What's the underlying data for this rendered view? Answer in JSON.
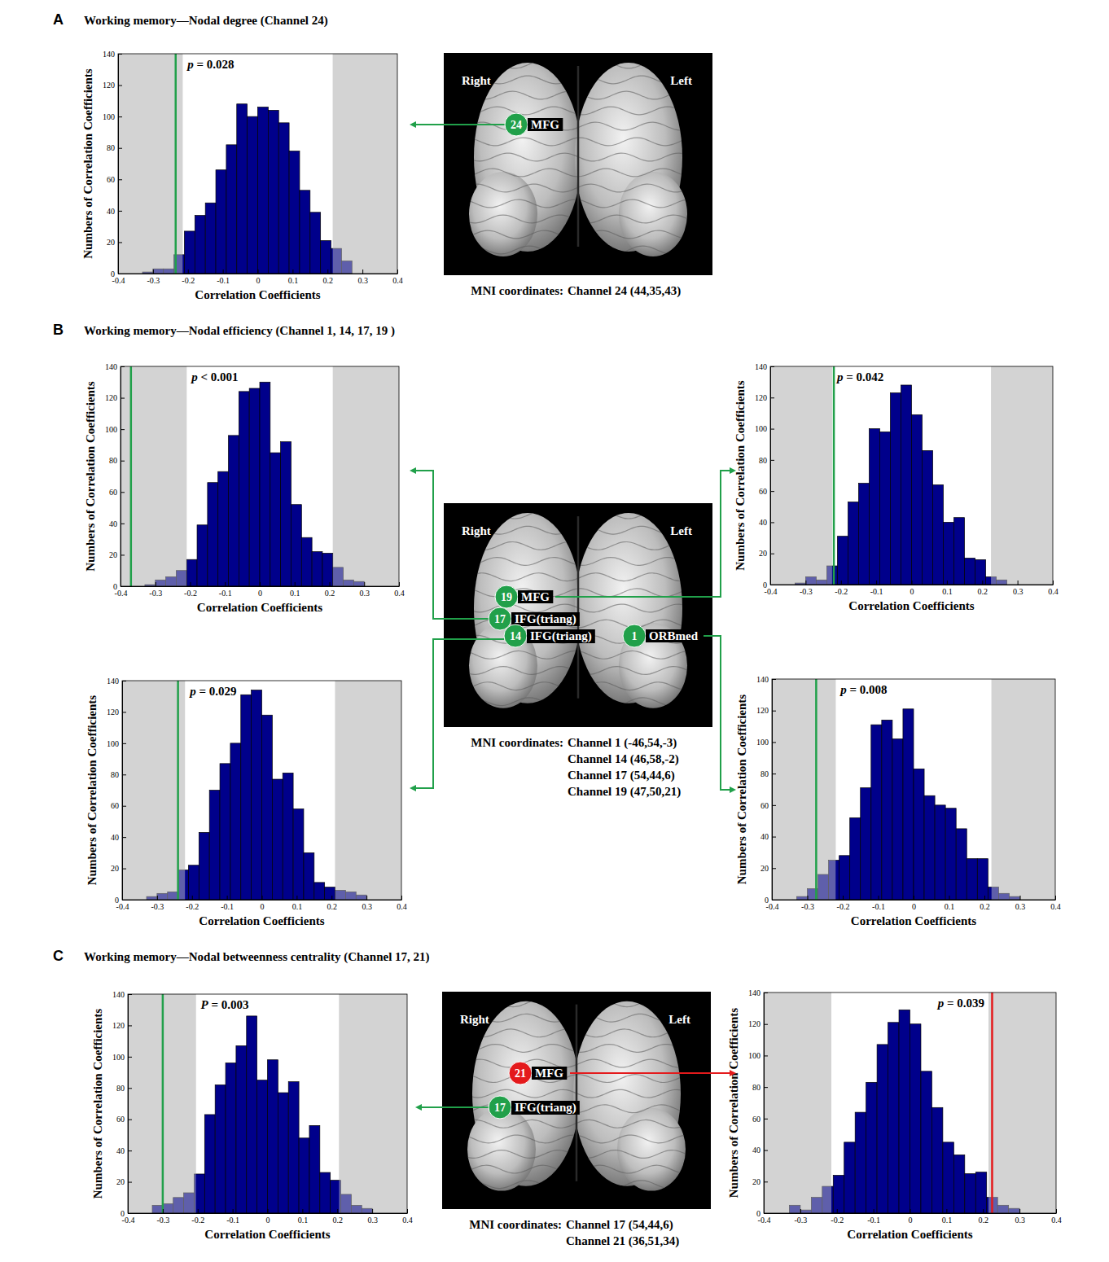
{
  "chart_data": [
    {
      "type": "histogram",
      "annotation": "p = 0.028",
      "xlabel": "Correlation Coefficients",
      "ylabel": "Numbers of Correlation Coefficients",
      "bins": [
        -0.33,
        -0.3,
        -0.27,
        -0.24,
        -0.21,
        -0.18,
        -0.15,
        -0.12,
        -0.09,
        -0.06,
        -0.03,
        0,
        0.03,
        0.06,
        0.09,
        0.12,
        0.15,
        0.18,
        0.21,
        0.24,
        0.27,
        0.3,
        0.33
      ],
      "counts": [
        1,
        3,
        3,
        12,
        27,
        37,
        45,
        66,
        82,
        108,
        100,
        106,
        104,
        96,
        78,
        53,
        39,
        21,
        16,
        8,
        0,
        0
      ],
      "color": "#00008b",
      "xlim": [
        -0.4,
        0.4
      ],
      "xticks": [
        -0.4,
        -0.3,
        -0.2,
        -0.1,
        0,
        0.1,
        0.2,
        0.3,
        0.4
      ],
      "ylim": [
        0,
        140
      ],
      "yticks": [
        0,
        20,
        40,
        60,
        80,
        100,
        120,
        140
      ],
      "critical_values": [
        -0.215,
        0.215
      ],
      "observed": {
        "value": -0.235,
        "color": "#21a04a"
      }
    },
    {
      "type": "histogram",
      "annotation": "p < 0.001",
      "xlabel": "Correlation Coefficients",
      "ylabel": "Numbers of Correlation Coefficients",
      "bins": [
        -0.33,
        -0.3,
        -0.27,
        -0.24,
        -0.21,
        -0.18,
        -0.15,
        -0.12,
        -0.09,
        -0.06,
        -0.03,
        0,
        0.03,
        0.06,
        0.09,
        0.12,
        0.15,
        0.18,
        0.21,
        0.24,
        0.27,
        0.3,
        0.33
      ],
      "counts": [
        1,
        4,
        6,
        10,
        17,
        39,
        66,
        73,
        96,
        124,
        126,
        130,
        85,
        92,
        52,
        31,
        22,
        21,
        12,
        4,
        3,
        0
      ],
      "color": "#00008b",
      "xlim": [
        -0.4,
        0.4
      ],
      "xticks": [
        -0.4,
        -0.3,
        -0.2,
        -0.1,
        0,
        0.1,
        0.2,
        0.3,
        0.4
      ],
      "ylim": [
        0,
        140
      ],
      "yticks": [
        0,
        20,
        40,
        60,
        80,
        100,
        120,
        140
      ],
      "critical_values": [
        -0.21,
        0.21
      ],
      "observed": {
        "value": -0.37,
        "color": "#21a04a"
      }
    },
    {
      "type": "histogram",
      "annotation": "p = 0.042",
      "xlabel": "Correlation Coefficients",
      "ylabel": "Numbers of Correlation Coefficients",
      "bins": [
        -0.33,
        -0.3,
        -0.27,
        -0.24,
        -0.21,
        -0.18,
        -0.15,
        -0.12,
        -0.09,
        -0.06,
        -0.03,
        0,
        0.03,
        0.06,
        0.09,
        0.12,
        0.15,
        0.18,
        0.21,
        0.24,
        0.27,
        0.3,
        0.33
      ],
      "counts": [
        1,
        5,
        3,
        12,
        31,
        53,
        65,
        100,
        98,
        123,
        128,
        109,
        86,
        64,
        40,
        43,
        17,
        16,
        5,
        3,
        0,
        0
      ],
      "color": "#00008b",
      "xlim": [
        -0.4,
        0.4
      ],
      "xticks": [
        -0.4,
        -0.3,
        -0.2,
        -0.1,
        0,
        0.1,
        0.2,
        0.3,
        0.4
      ],
      "ylim": [
        0,
        140
      ],
      "yticks": [
        0,
        20,
        40,
        60,
        80,
        100,
        120,
        140
      ],
      "critical_values": [
        -0.225,
        0.225
      ],
      "observed": {
        "value": -0.22,
        "color": "#21a04a"
      }
    },
    {
      "type": "histogram",
      "annotation": "p = 0.029",
      "xlabel": "Correlation Coefficients",
      "ylabel": "Numbers of Correlation Coefficients",
      "bins": [
        -0.33,
        -0.3,
        -0.27,
        -0.24,
        -0.21,
        -0.18,
        -0.15,
        -0.12,
        -0.09,
        -0.06,
        -0.03,
        0,
        0.03,
        0.06,
        0.09,
        0.12,
        0.15,
        0.18,
        0.21,
        0.24,
        0.27,
        0.3,
        0.33
      ],
      "counts": [
        2,
        4,
        5,
        19,
        22,
        43,
        70,
        87,
        100,
        131,
        134,
        118,
        77,
        81,
        58,
        30,
        11,
        8,
        6,
        5,
        3,
        0
      ],
      "color": "#00008b",
      "xlim": [
        -0.4,
        0.4
      ],
      "xticks": [
        -0.4,
        -0.3,
        -0.2,
        -0.1,
        0,
        0.1,
        0.2,
        0.3,
        0.4
      ],
      "ylim": [
        0,
        140
      ],
      "yticks": [
        0,
        20,
        40,
        60,
        80,
        100,
        120,
        140
      ],
      "critical_values": [
        -0.22,
        0.21
      ],
      "observed": {
        "value": -0.24,
        "color": "#21a04a"
      }
    },
    {
      "type": "histogram",
      "annotation": "p = 0.008",
      "xlabel": "Correlation Coefficients",
      "ylabel": "Numbers of Correlation Coefficients",
      "bins": [
        -0.33,
        -0.3,
        -0.27,
        -0.24,
        -0.21,
        -0.18,
        -0.15,
        -0.12,
        -0.09,
        -0.06,
        -0.03,
        0,
        0.03,
        0.06,
        0.09,
        0.12,
        0.15,
        0.18,
        0.21,
        0.24,
        0.27,
        0.3,
        0.33
      ],
      "counts": [
        2,
        7,
        16,
        25,
        28,
        52,
        71,
        111,
        114,
        102,
        121,
        83,
        66,
        60,
        58,
        45,
        26,
        26,
        8,
        4,
        2,
        0
      ],
      "color": "#00008b",
      "xlim": [
        -0.4,
        0.4
      ],
      "xticks": [
        -0.4,
        -0.3,
        -0.2,
        -0.1,
        0,
        0.1,
        0.2,
        0.3,
        0.4
      ],
      "ylim": [
        0,
        140
      ],
      "yticks": [
        0,
        20,
        40,
        60,
        80,
        100,
        120,
        140
      ],
      "critical_values": [
        -0.22,
        0.22
      ],
      "observed": {
        "value": -0.275,
        "color": "#21a04a"
      }
    },
    {
      "type": "histogram",
      "annotation": "P = 0.003",
      "xlabel": "Correlation Coefficients",
      "ylabel": "Numbers of Correlation Coefficients",
      "bins": [
        -0.33,
        -0.3,
        -0.27,
        -0.24,
        -0.21,
        -0.18,
        -0.15,
        -0.12,
        -0.09,
        -0.06,
        -0.03,
        0,
        0.03,
        0.06,
        0.09,
        0.12,
        0.15,
        0.18,
        0.21,
        0.24,
        0.27,
        0.3,
        0.33
      ],
      "counts": [
        5,
        6,
        10,
        13,
        25,
        63,
        82,
        96,
        107,
        126,
        85,
        98,
        77,
        84,
        48,
        56,
        26,
        21,
        12,
        5,
        3,
        0
      ],
      "color": "#00008b",
      "xlim": [
        -0.4,
        0.4
      ],
      "xticks": [
        -0.4,
        -0.3,
        -0.2,
        -0.1,
        0,
        0.1,
        0.2,
        0.3,
        0.4
      ],
      "ylim": [
        0,
        140
      ],
      "yticks": [
        0,
        20,
        40,
        60,
        80,
        100,
        120,
        140
      ],
      "critical_values": [
        -0.205,
        0.205
      ],
      "observed": {
        "value": -0.3,
        "color": "#21a04a"
      }
    },
    {
      "type": "histogram",
      "annotation": "p = 0.039",
      "xlabel": "Correlation Coefficients",
      "ylabel": "Numbers of Correlation Coefficients",
      "bins": [
        -0.33,
        -0.3,
        -0.27,
        -0.24,
        -0.21,
        -0.18,
        -0.15,
        -0.12,
        -0.09,
        -0.06,
        -0.03,
        0,
        0.03,
        0.06,
        0.09,
        0.12,
        0.15,
        0.18,
        0.21,
        0.24,
        0.27,
        0.3,
        0.33
      ],
      "counts": [
        5,
        2,
        10,
        17,
        24,
        45,
        64,
        83,
        107,
        121,
        129,
        120,
        90,
        67,
        45,
        37,
        25,
        26,
        10,
        5,
        3,
        0
      ],
      "color": "#00008b",
      "xlim": [
        -0.4,
        0.4
      ],
      "xticks": [
        -0.4,
        -0.3,
        -0.2,
        -0.1,
        0,
        0.1,
        0.2,
        0.3,
        0.4
      ],
      "ylim": [
        0,
        140
      ],
      "yticks": [
        0,
        20,
        40,
        60,
        80,
        100,
        120,
        140
      ],
      "critical_values": [
        -0.215,
        0.215
      ],
      "observed": {
        "value": 0.225,
        "color": "#e41a1c"
      }
    }
  ],
  "panels": [
    {
      "letter": "A",
      "title": "Working memory—Nodal degree (Channel 24)",
      "brain": {
        "right": "Right",
        "left": "Left",
        "channels": [
          {
            "number": "24",
            "region": "MFG",
            "color": "#21a04a"
          }
        ],
        "mni_prefix": "MNI coordinates:",
        "mni_lines": [
          "Channel 24 (44,35,43)"
        ]
      }
    },
    {
      "letter": "B",
      "title": "Working memory—Nodal efficiency (Channel 1, 14, 17, 19 )",
      "brain": {
        "right": "Right",
        "left": "Left",
        "channels": [
          {
            "number": "19",
            "region": "MFG",
            "color": "#21a04a"
          },
          {
            "number": "17",
            "region": "IFG(triang)",
            "color": "#21a04a"
          },
          {
            "number": "14",
            "region": "IFG(triang)",
            "color": "#21a04a"
          },
          {
            "number": "1",
            "region": "ORBmed",
            "color": "#21a04a"
          }
        ],
        "mni_prefix": "MNI coordinates:",
        "mni_lines": [
          "Channel 1 (-46,54,-3)",
          "Channel 14 (46,58,-2)",
          "Channel 17 (54,44,6)",
          "Channel 19 (47,50,21)"
        ]
      }
    },
    {
      "letter": "C",
      "title": "Working memory—Nodal betweenness centrality (Channel 17, 21)",
      "brain": {
        "right": "Right",
        "left": "Left",
        "channels": [
          {
            "number": "21",
            "region": "MFG",
            "color": "#e41a1c"
          },
          {
            "number": "17",
            "region": "IFG(triang)",
            "color": "#21a04a"
          }
        ],
        "mni_prefix": "MNI coordinates:",
        "mni_lines": [
          "Channel 17 (54,44,6)",
          "Channel 21 (36,51,34)"
        ]
      }
    }
  ]
}
